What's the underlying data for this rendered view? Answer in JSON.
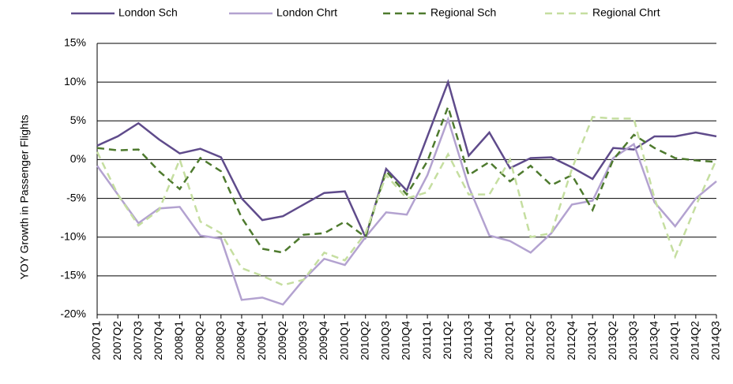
{
  "chart_data": {
    "type": "line",
    "y_label": "YOY Growth in Passenger Flights",
    "categories": [
      "2007Q1",
      "2007Q2",
      "2007Q3",
      "2007Q4",
      "2008Q1",
      "2008Q2",
      "2008Q3",
      "2008Q4",
      "2009Q1",
      "2009Q2",
      "2009Q3",
      "2009Q4",
      "2010Q1",
      "2010Q2",
      "2010Q3",
      "2010Q4",
      "2011Q1",
      "2011Q2",
      "2011Q3",
      "2011Q4",
      "2012Q1",
      "2012Q2",
      "2012Q3",
      "2012Q4",
      "2013Q1",
      "2013Q2",
      "2013Q3",
      "2013Q4",
      "2014Q1",
      "2014Q2",
      "2014Q3"
    ],
    "series": [
      {
        "name": "London Sch",
        "color": "#5f4b8b",
        "dashed": false,
        "values": [
          1.8,
          3,
          4.7,
          2.6,
          0.8,
          1.4,
          0.3,
          -5,
          -7.8,
          -7.3,
          -5.8,
          -4.3,
          -4.1,
          -10,
          -1.2,
          -4,
          3,
          10,
          0.5,
          3.5,
          -1.1,
          0.2,
          0.3,
          -1,
          -2.5,
          1.5,
          1.3,
          3,
          3,
          3.5,
          3
        ]
      },
      {
        "name": "London Chrt",
        "color": "#b3a2d0",
        "dashed": false,
        "values": [
          -0.8,
          -4.5,
          -8.2,
          -6.3,
          -6.1,
          -9.8,
          -10.2,
          -18.1,
          -17.8,
          -18.7,
          -15.5,
          -12.8,
          -13.6,
          -10,
          -6.8,
          -7.1,
          -2,
          5.2,
          -3.5,
          -9.8,
          -10.5,
          -12,
          -9.5,
          -5.8,
          -5.3,
          0.2,
          2,
          -5.5,
          -8.6,
          -5,
          -2.8
        ]
      },
      {
        "name": "Regional Sch",
        "color": "#4e7a2e",
        "dashed": true,
        "values": [
          1.5,
          1.2,
          1.3,
          -1.5,
          -3.8,
          0.2,
          -1.5,
          -7.5,
          -11.5,
          -12,
          -9.7,
          -9.5,
          -8,
          -10,
          -1.5,
          -4.5,
          -0.2,
          6.8,
          -2,
          -0.3,
          -2.8,
          -0.8,
          -3.3,
          -2,
          -6.5,
          0,
          3.2,
          1.5,
          0.2,
          -0.1,
          -0.3
        ]
      },
      {
        "name": "Regional Chrt",
        "color": "#c5dea0",
        "dashed": true,
        "values": [
          1,
          -4.5,
          -8.5,
          -6.5,
          0,
          -8,
          -9.5,
          -14,
          -15,
          -16.2,
          -15.5,
          -12,
          -13,
          -9.5,
          -2,
          -5,
          -4.2,
          0.7,
          -4.5,
          -4.5,
          0,
          -10,
          -9.5,
          -1.2,
          5.5,
          5.3,
          5.3,
          -5,
          -12.5,
          -6,
          0
        ]
      }
    ],
    "ylim": [
      -20,
      15
    ],
    "yticks": [
      {
        "value": -20,
        "label": "-20%"
      },
      {
        "value": -15,
        "label": "-15%"
      },
      {
        "value": -10,
        "label": "-10%"
      },
      {
        "value": -5,
        "label": "-5%"
      },
      {
        "value": 0,
        "label": "0%"
      },
      {
        "value": 5,
        "label": "5%"
      },
      {
        "value": 10,
        "label": "10%"
      },
      {
        "value": 15,
        "label": "15%"
      }
    ],
    "grid": true,
    "legend": "top"
  }
}
